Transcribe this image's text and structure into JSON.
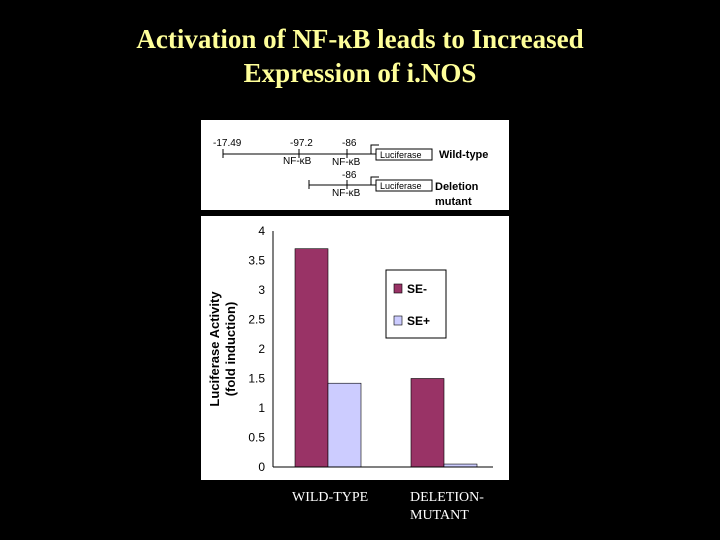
{
  "title": {
    "line1": "Activation of NF-κB leads to Increased",
    "line2": "Expression of i.NOS"
  },
  "diagram": {
    "positions": [
      "-17.49",
      "-97.2",
      "-86",
      "-86"
    ],
    "site_label": "NF-κB",
    "reporter_label": "Luciferase",
    "wild_type_label": "Wild-type",
    "deletion_label_line1": "Deletion",
    "deletion_label_line2": "mutant"
  },
  "chart_data": {
    "type": "bar",
    "categories": [
      "WILD-TYPE",
      "DELETION-MUTANT"
    ],
    "category_labels": [
      [
        "WILD-TYPE"
      ],
      [
        "DELETION-",
        "MUTANT"
      ]
    ],
    "series": [
      {
        "name": "SE-",
        "values": [
          3.7,
          1.5
        ],
        "color": "#993366"
      },
      {
        "name": "SE+",
        "values": [
          1.42,
          0.05
        ],
        "color": "#ccccff"
      }
    ],
    "ylabel_line1": "Luciferase Activity",
    "ylabel_line2": "(fold induction)",
    "ylim": [
      0,
      4
    ],
    "yticks": [
      0,
      0.5,
      1,
      1.5,
      2,
      2.5,
      3,
      3.5,
      4
    ],
    "legend_position": "right",
    "grid": false
  }
}
